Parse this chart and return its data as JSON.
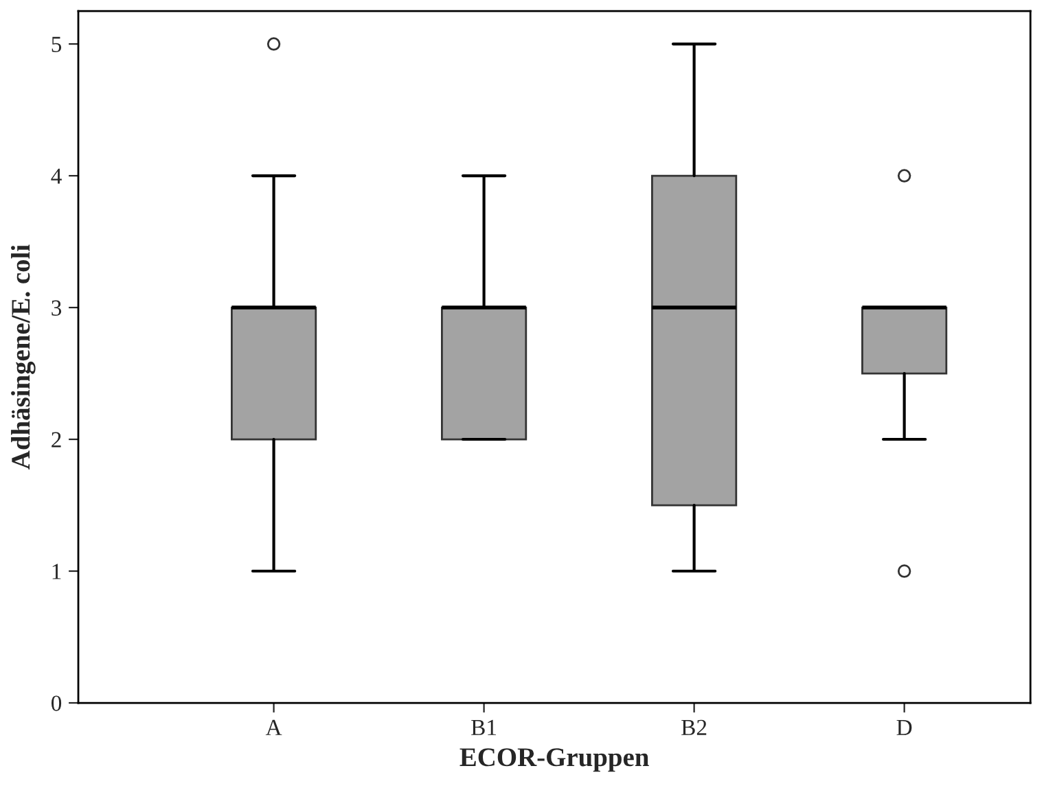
{
  "chart_data": {
    "type": "box",
    "xlabel": "ECOR-Gruppen",
    "ylabel": "Adhäsingene/E. coli",
    "categories": [
      "A",
      "B1",
      "B2",
      "D"
    ],
    "boxes": [
      {
        "low": 1,
        "q1": 2,
        "median": 3,
        "q3": 3,
        "high": 4,
        "outliers": [
          5
        ]
      },
      {
        "low": 2,
        "q1": 2,
        "median": 3,
        "q3": 3,
        "high": 4
      },
      {
        "low": 1,
        "q1": 1.5,
        "median": 3,
        "q3": 4,
        "high": 5
      },
      {
        "low": 2,
        "q1": 2.5,
        "median": 3,
        "q3": 3,
        "high": 3,
        "outliers": [
          4,
          1
        ]
      }
    ],
    "color": "#a3a3a3",
    "ylim": [
      0,
      5.25
    ],
    "yticks": [
      0,
      1,
      2,
      3,
      4,
      5
    ],
    "grid": false
  }
}
